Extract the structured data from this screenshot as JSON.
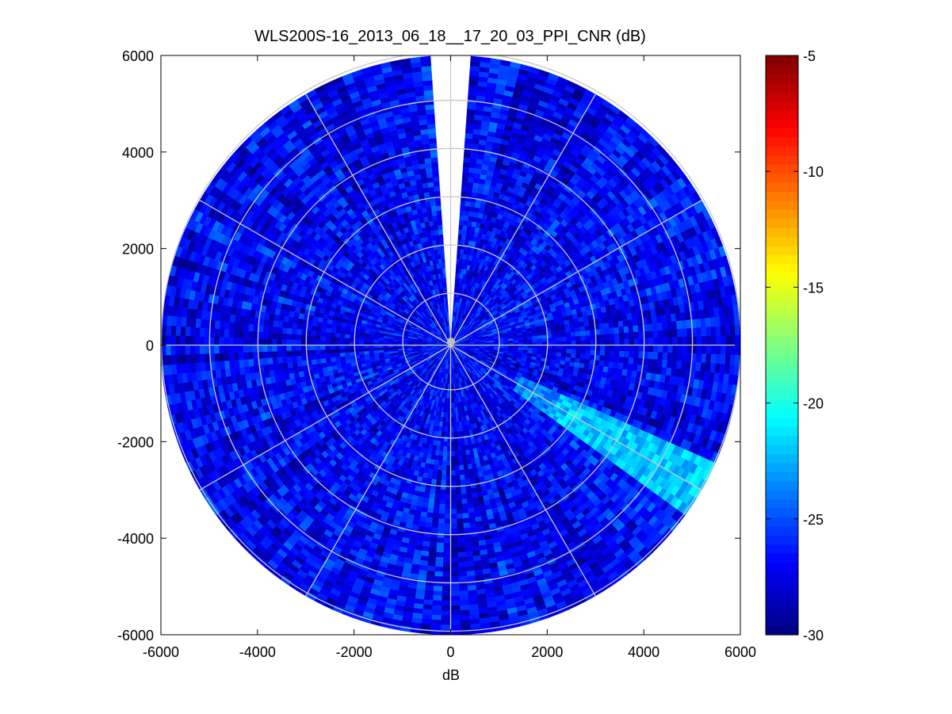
{
  "chart_data": {
    "type": "heatmap",
    "subtype": "polar-ppi",
    "title": "WLS200S-16_2013_06_18__17_20_03_PPI_CNR (dB)",
    "xlabel": "dB",
    "ylabel": "",
    "xlim": [
      -6000,
      6000
    ],
    "ylim": [
      -6000,
      6000
    ],
    "xticks": [
      "-6000",
      "-4000",
      "-2000",
      "0",
      "2000",
      "4000",
      "6000"
    ],
    "yticks": [
      "6000",
      "4000",
      "2000",
      "0",
      "-2000",
      "-4000",
      "-6000"
    ],
    "max_range": 6000,
    "range_rings": [
      1000,
      2000,
      3000,
      4000,
      5000,
      6000
    ],
    "azimuth_spokes_deg": [
      0,
      30,
      60,
      90,
      120,
      150,
      180,
      210,
      240,
      270,
      300,
      330
    ],
    "grid": true,
    "missing_sector_deg": [
      356,
      4
    ],
    "colorbar": {
      "min": -30,
      "max": -5,
      "ticks": [
        "-5",
        "-10",
        "-15",
        "-20",
        "-25",
        "-30"
      ],
      "colormap": "jet"
    },
    "typical_cnr_db": [
      -29,
      -25
    ],
    "notable_features": [
      {
        "azimuth_deg": [
          115,
          125
        ],
        "cnr_db": -22
      }
    ]
  }
}
